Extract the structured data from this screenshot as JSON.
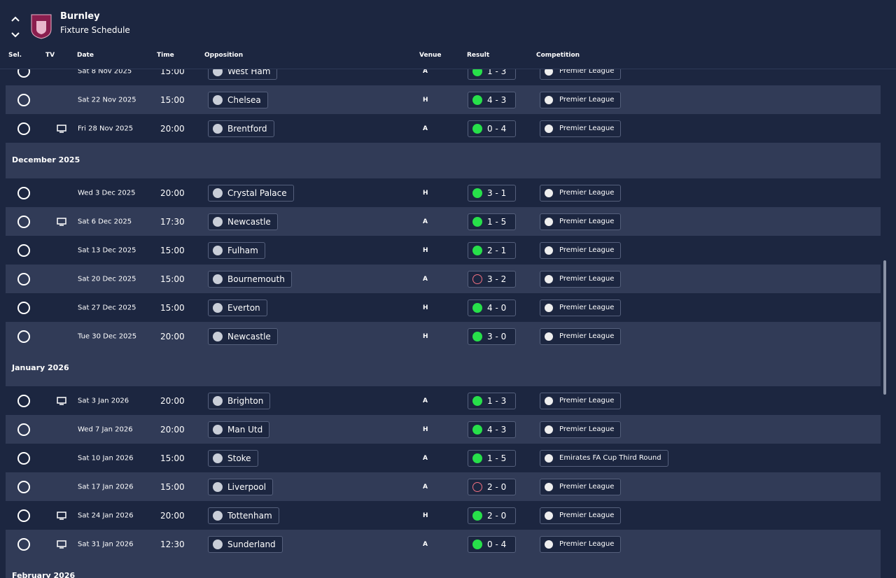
{
  "header": {
    "club": "Burnley",
    "subtitle": "Fixture Schedule"
  },
  "columns": [
    "Sel.",
    "TV",
    "Date",
    "Time",
    "Opposition",
    "Venue",
    "Result",
    "Competition"
  ],
  "rows": [
    {
      "date": "Sat 8 Nov 2025",
      "time": "15:00",
      "opposition": "West Ham",
      "venue": "A",
      "result": "1 - 3",
      "result_icon": "filled",
      "competition": "Premier League",
      "tv": false
    },
    {
      "date": "Sat 22 Nov 2025",
      "time": "15:00",
      "opposition": "Chelsea",
      "venue": "H",
      "result": "4 - 3",
      "result_icon": "filled",
      "competition": "Premier League",
      "tv": false
    },
    {
      "date": "Fri 28 Nov 2025",
      "time": "20:00",
      "opposition": "Brentford",
      "venue": "A",
      "result": "0 - 4",
      "result_icon": "filled",
      "competition": "Premier League",
      "tv": true
    },
    {
      "month": "December 2025"
    },
    {
      "date": "Wed 3 Dec 2025",
      "time": "20:00",
      "opposition": "Crystal Palace",
      "venue": "H",
      "result": "3 - 1",
      "result_icon": "filled",
      "competition": "Premier League",
      "tv": false
    },
    {
      "date": "Sat 6 Dec 2025",
      "time": "17:30",
      "opposition": "Newcastle",
      "venue": "A",
      "result": "1 - 5",
      "result_icon": "filled",
      "competition": "Premier League",
      "tv": true
    },
    {
      "date": "Sat 13 Dec 2025",
      "time": "15:00",
      "opposition": "Fulham",
      "venue": "H",
      "result": "2 - 1",
      "result_icon": "filled",
      "competition": "Premier League",
      "tv": false
    },
    {
      "date": "Sat 20 Dec 2025",
      "time": "15:00",
      "opposition": "Bournemouth",
      "venue": "A",
      "result": "3 - 2",
      "result_icon": "hollow",
      "competition": "Premier League",
      "tv": false
    },
    {
      "date": "Sat 27 Dec 2025",
      "time": "15:00",
      "opposition": "Everton",
      "venue": "H",
      "result": "4 - 0",
      "result_icon": "filled",
      "competition": "Premier League",
      "tv": false
    },
    {
      "date": "Tue 30 Dec 2025",
      "time": "20:00",
      "opposition": "Newcastle",
      "venue": "H",
      "result": "3 - 0",
      "result_icon": "filled",
      "competition": "Premier League",
      "tv": false
    },
    {
      "month": "January 2026"
    },
    {
      "date": "Sat 3 Jan 2026",
      "time": "20:00",
      "opposition": "Brighton",
      "venue": "A",
      "result": "1 - 3",
      "result_icon": "filled",
      "competition": "Premier League",
      "tv": true
    },
    {
      "date": "Wed 7 Jan 2026",
      "time": "20:00",
      "opposition": "Man Utd",
      "venue": "H",
      "result": "4 - 3",
      "result_icon": "filled",
      "competition": "Premier League",
      "tv": false
    },
    {
      "date": "Sat 10 Jan 2026",
      "time": "15:00",
      "opposition": "Stoke",
      "venue": "A",
      "result": "1 - 5",
      "result_icon": "filled",
      "competition": "Emirates FA Cup Third Round",
      "tv": false
    },
    {
      "date": "Sat 17 Jan 2026",
      "time": "15:00",
      "opposition": "Liverpool",
      "venue": "A",
      "result": "2 - 0",
      "result_icon": "hollow",
      "competition": "Premier League",
      "tv": false
    },
    {
      "date": "Sat 24 Jan 2026",
      "time": "20:00",
      "opposition": "Tottenham",
      "venue": "H",
      "result": "2 - 0",
      "result_icon": "filled",
      "competition": "Premier League",
      "tv": true
    },
    {
      "date": "Sat 31 Jan 2026",
      "time": "12:30",
      "opposition": "Sunderland",
      "venue": "A",
      "result": "0 - 4",
      "result_icon": "filled",
      "competition": "Premier League",
      "tv": true
    },
    {
      "month": "February 2026"
    }
  ]
}
